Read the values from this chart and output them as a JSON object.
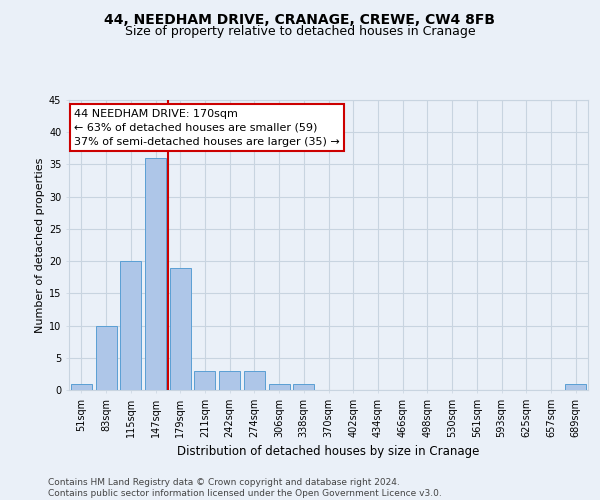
{
  "title1": "44, NEEDHAM DRIVE, CRANAGE, CREWE, CW4 8FB",
  "title2": "Size of property relative to detached houses in Cranage",
  "xlabel": "Distribution of detached houses by size in Cranage",
  "ylabel": "Number of detached properties",
  "bins": [
    "51sqm",
    "83sqm",
    "115sqm",
    "147sqm",
    "179sqm",
    "211sqm",
    "242sqm",
    "274sqm",
    "306sqm",
    "338sqm",
    "370sqm",
    "402sqm",
    "434sqm",
    "466sqm",
    "498sqm",
    "530sqm",
    "561sqm",
    "593sqm",
    "625sqm",
    "657sqm",
    "689sqm"
  ],
  "bar_heights": [
    1,
    10,
    20,
    36,
    19,
    3,
    3,
    3,
    1,
    1,
    0,
    0,
    0,
    0,
    0,
    0,
    0,
    0,
    0,
    0,
    1
  ],
  "bar_color": "#aec6e8",
  "bar_edgecolor": "#5a9fd4",
  "property_bin_index": 3,
  "vline_color": "#cc0000",
  "annotation_text": "44 NEEDHAM DRIVE: 170sqm\n← 63% of detached houses are smaller (59)\n37% of semi-detached houses are larger (35) →",
  "annotation_boxcolor": "white",
  "annotation_edgecolor": "#cc0000",
  "ylim": [
    0,
    45
  ],
  "yticks": [
    0,
    5,
    10,
    15,
    20,
    25,
    30,
    35,
    40,
    45
  ],
  "footer": "Contains HM Land Registry data © Crown copyright and database right 2024.\nContains public sector information licensed under the Open Government Licence v3.0.",
  "bg_color": "#eaf0f8",
  "plot_bg_color": "#eaf0f8",
  "grid_color": "#c8d4e0",
  "title1_fontsize": 10,
  "title2_fontsize": 9,
  "ylabel_fontsize": 8,
  "xlabel_fontsize": 8.5,
  "tick_fontsize": 7,
  "annotation_fontsize": 8,
  "footer_fontsize": 6.5
}
